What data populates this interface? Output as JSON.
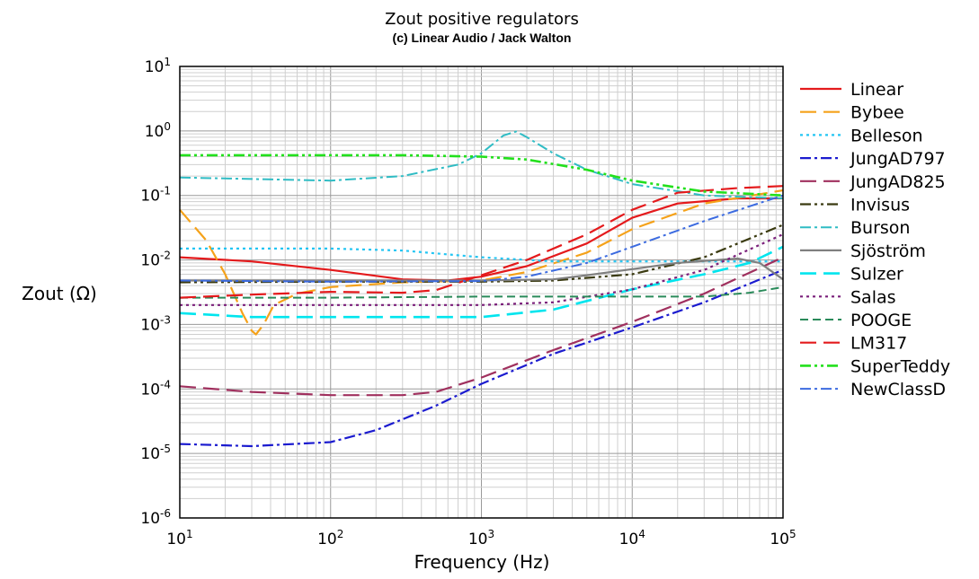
{
  "chart_data": {
    "type": "line",
    "title": "Zout positive regulators",
    "subtitle": "(c) Linear Audio / Jack Walton",
    "xlabel": "Frequency (Hz)",
    "ylabel": "Zout (Ω)",
    "xscale": "log",
    "yscale": "log",
    "xlim": [
      10,
      100000
    ],
    "ylim": [
      1e-06,
      10
    ],
    "x_ticks": [
      {
        "base": "10",
        "exp": "1"
      },
      {
        "base": "10",
        "exp": "2"
      },
      {
        "base": "10",
        "exp": "3"
      },
      {
        "base": "10",
        "exp": "4"
      },
      {
        "base": "10",
        "exp": "5"
      }
    ],
    "y_ticks": [
      {
        "base": "10",
        "exp": "1"
      },
      {
        "base": "10",
        "exp": "0"
      },
      {
        "base": "10",
        "exp": "-1"
      },
      {
        "base": "10",
        "exp": "-2"
      },
      {
        "base": "10",
        "exp": "-3"
      },
      {
        "base": "10",
        "exp": "-4"
      },
      {
        "base": "10",
        "exp": "-5"
      },
      {
        "base": "10",
        "exp": "-6"
      }
    ],
    "grid": true,
    "legend_position": "right",
    "series": [
      {
        "name": "Linear",
        "color": "#e41a1c",
        "dash": "solid",
        "width": 2.2,
        "points": [
          [
            10,
            0.011
          ],
          [
            30,
            0.0095
          ],
          [
            100,
            0.007
          ],
          [
            300,
            0.005
          ],
          [
            600,
            0.0048
          ],
          [
            1000,
            0.0055
          ],
          [
            2000,
            0.008
          ],
          [
            5000,
            0.018
          ],
          [
            10000,
            0.045
          ],
          [
            20000,
            0.075
          ],
          [
            50000,
            0.09
          ],
          [
            100000,
            0.09
          ]
        ]
      },
      {
        "name": "Bybee",
        "color": "#f5a21a",
        "dash": "longdash",
        "width": 2.2,
        "points": [
          [
            10,
            0.06
          ],
          [
            15,
            0.02
          ],
          [
            20,
            0.006
          ],
          [
            26,
            0.0015
          ],
          [
            30,
            0.0008
          ],
          [
            32,
            0.0007
          ],
          [
            36,
            0.001
          ],
          [
            42,
            0.002
          ],
          [
            60,
            0.003
          ],
          [
            100,
            0.0038
          ],
          [
            300,
            0.0045
          ],
          [
            1000,
            0.0048
          ],
          [
            2000,
            0.0065
          ],
          [
            5000,
            0.013
          ],
          [
            10000,
            0.03
          ],
          [
            30000,
            0.075
          ],
          [
            100000,
            0.12
          ]
        ]
      },
      {
        "name": "Belleson",
        "color": "#23c5f3",
        "dash": "dot",
        "width": 2.2,
        "points": [
          [
            10,
            0.015
          ],
          [
            100,
            0.015
          ],
          [
            300,
            0.014
          ],
          [
            1000,
            0.011
          ],
          [
            3000,
            0.0095
          ],
          [
            10000,
            0.0095
          ],
          [
            30000,
            0.0095
          ],
          [
            100000,
            0.0095
          ]
        ]
      },
      {
        "name": "JungAD797",
        "color": "#1b1bcf",
        "dash": "dashdot",
        "width": 2.2,
        "points": [
          [
            10,
            1.4e-05
          ],
          [
            30,
            1.3e-05
          ],
          [
            100,
            1.5e-05
          ],
          [
            200,
            2.3e-05
          ],
          [
            500,
            5.5e-05
          ],
          [
            1000,
            0.00012
          ],
          [
            3000,
            0.00035
          ],
          [
            10000,
            0.0009
          ],
          [
            30000,
            0.0022
          ],
          [
            100000,
            0.007
          ]
        ]
      },
      {
        "name": "JungAD825",
        "color": "#a0305e",
        "dash": "longdash",
        "width": 2.2,
        "points": [
          [
            10,
            0.00011
          ],
          [
            30,
            9e-05
          ],
          [
            100,
            8e-05
          ],
          [
            300,
            8e-05
          ],
          [
            500,
            9e-05
          ],
          [
            1000,
            0.00015
          ],
          [
            3000,
            0.0004
          ],
          [
            10000,
            0.0011
          ],
          [
            30000,
            0.003
          ],
          [
            100000,
            0.011
          ]
        ]
      },
      {
        "name": "Invisus",
        "color": "#3a3a10",
        "dash": "dashdotdot",
        "width": 2.2,
        "points": [
          [
            10,
            0.0045
          ],
          [
            100,
            0.0046
          ],
          [
            1000,
            0.0046
          ],
          [
            3000,
            0.0048
          ],
          [
            10000,
            0.006
          ],
          [
            30000,
            0.011
          ],
          [
            100000,
            0.035
          ]
        ]
      },
      {
        "name": "Burson",
        "color": "#2fbcc4",
        "dash": "dashdot",
        "width": 2.0,
        "points": [
          [
            10,
            0.19
          ],
          [
            30,
            0.18
          ],
          [
            100,
            0.17
          ],
          [
            300,
            0.2
          ],
          [
            700,
            0.3
          ],
          [
            1000,
            0.45
          ],
          [
            1400,
            0.85
          ],
          [
            1700,
            0.98
          ],
          [
            2000,
            0.8
          ],
          [
            3000,
            0.45
          ],
          [
            5000,
            0.25
          ],
          [
            10000,
            0.15
          ],
          [
            30000,
            0.1
          ],
          [
            100000,
            0.09
          ]
        ]
      },
      {
        "name": "Sjöström",
        "color": "#808080",
        "dash": "solid",
        "width": 2.2,
        "points": [
          [
            10,
            0.0048
          ],
          [
            100,
            0.0048
          ],
          [
            1000,
            0.0048
          ],
          [
            3000,
            0.005
          ],
          [
            5000,
            0.0058
          ],
          [
            10000,
            0.0072
          ],
          [
            20000,
            0.009
          ],
          [
            50000,
            0.0105
          ],
          [
            70000,
            0.009
          ],
          [
            100000,
            0.005
          ]
        ]
      },
      {
        "name": "Sulzer",
        "color": "#00e5ee",
        "dash": "longdash",
        "width": 2.6,
        "points": [
          [
            10,
            0.0015
          ],
          [
            30,
            0.0013
          ],
          [
            100,
            0.0013
          ],
          [
            1000,
            0.0013
          ],
          [
            3000,
            0.0017
          ],
          [
            10000,
            0.0035
          ],
          [
            30000,
            0.006
          ],
          [
            60000,
            0.009
          ],
          [
            100000,
            0.016
          ]
        ]
      },
      {
        "name": "Salas",
        "color": "#7a1f7a",
        "dash": "dot",
        "width": 2.2,
        "points": [
          [
            10,
            0.002
          ],
          [
            100,
            0.002
          ],
          [
            1000,
            0.002
          ],
          [
            3000,
            0.0022
          ],
          [
            10000,
            0.0035
          ],
          [
            30000,
            0.007
          ],
          [
            100000,
            0.025
          ]
        ]
      },
      {
        "name": "POOGE",
        "color": "#2a8a5a",
        "dash": "dash",
        "width": 2.0,
        "points": [
          [
            10,
            0.0026
          ],
          [
            100,
            0.0026
          ],
          [
            1000,
            0.0027
          ],
          [
            10000,
            0.0027
          ],
          [
            30000,
            0.0027
          ],
          [
            60000,
            0.0031
          ],
          [
            100000,
            0.0038
          ]
        ]
      },
      {
        "name": "LM317",
        "color": "#e41a1c",
        "dash": "longdash",
        "width": 2.2,
        "points": [
          [
            10,
            0.0026
          ],
          [
            30,
            0.0029
          ],
          [
            100,
            0.0032
          ],
          [
            300,
            0.0031
          ],
          [
            500,
            0.0034
          ],
          [
            1000,
            0.0058
          ],
          [
            2000,
            0.01
          ],
          [
            5000,
            0.025
          ],
          [
            10000,
            0.06
          ],
          [
            20000,
            0.11
          ],
          [
            50000,
            0.13
          ],
          [
            100000,
            0.14
          ]
        ]
      },
      {
        "name": "SuperTeddy",
        "color": "#22e01c",
        "dash": "dashdotdot",
        "width": 2.6,
        "points": [
          [
            10,
            0.42
          ],
          [
            100,
            0.42
          ],
          [
            300,
            0.42
          ],
          [
            1000,
            0.4
          ],
          [
            2000,
            0.36
          ],
          [
            5000,
            0.25
          ],
          [
            10000,
            0.17
          ],
          [
            30000,
            0.115
          ],
          [
            100000,
            0.1
          ]
        ]
      },
      {
        "name": "NewClassD",
        "color": "#3c6be0",
        "dash": "dashdot",
        "width": 2.0,
        "points": [
          [
            10,
            0.0048
          ],
          [
            100,
            0.0046
          ],
          [
            1000,
            0.0047
          ],
          [
            2000,
            0.0055
          ],
          [
            5000,
            0.009
          ],
          [
            10000,
            0.016
          ],
          [
            30000,
            0.04
          ],
          [
            100000,
            0.1
          ]
        ]
      }
    ]
  }
}
